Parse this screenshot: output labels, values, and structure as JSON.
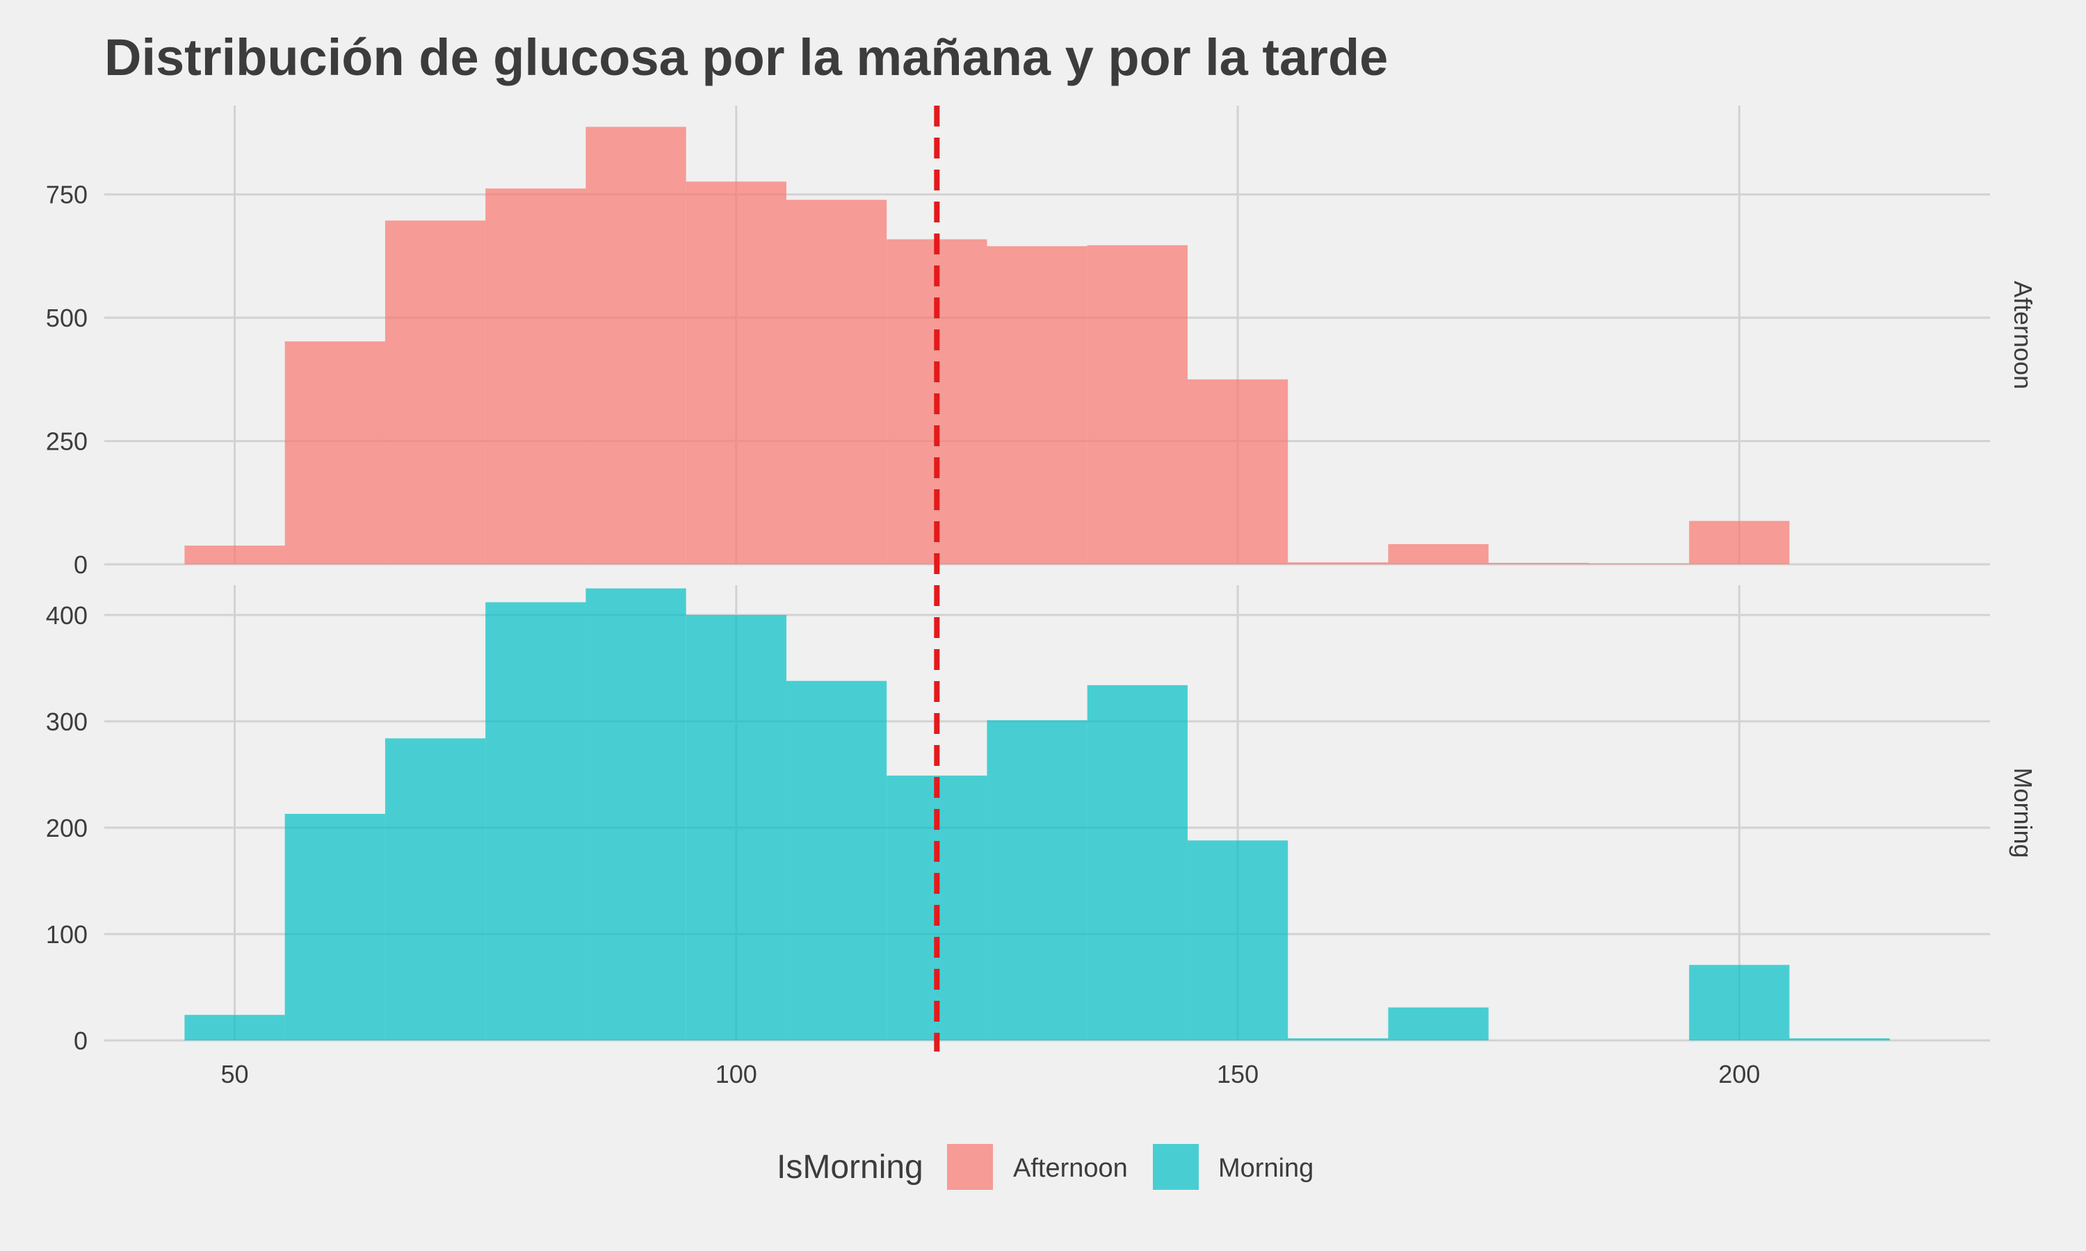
{
  "chart_data": {
    "type": "bar",
    "title": "Distribución de glucosa por la mañana y por la tarde",
    "xlabel": "",
    "ylabel": "",
    "x_ticks": [
      50,
      100,
      150,
      200
    ],
    "xlim": [
      37,
      225
    ],
    "bin_width": 10,
    "bin_edges": [
      45,
      55,
      65,
      75,
      85,
      95,
      105,
      115,
      125,
      135,
      145,
      155,
      165,
      175,
      185,
      195,
      205,
      215
    ],
    "reference_line": {
      "x": 120,
      "color": "#e31a1c",
      "style": "dashed"
    },
    "grid": true,
    "legend": {
      "title": "IsMorning",
      "position": "bottom",
      "entries": [
        "Afternoon",
        "Morning"
      ]
    },
    "facets": [
      {
        "name": "Afternoon",
        "color": "#f8766d",
        "ylim": [
          0,
          930
        ],
        "y_ticks": [
          0,
          250,
          500,
          750
        ],
        "values": [
          38,
          452,
          697,
          762,
          887,
          776,
          739,
          659,
          645,
          647,
          375,
          4,
          41,
          3,
          2,
          88,
          0
        ]
      },
      {
        "name": "Morning",
        "color": "#00bfc4",
        "ylim": [
          0,
          428
        ],
        "y_ticks": [
          0,
          100,
          200,
          300,
          400
        ],
        "values": [
          24,
          213,
          284,
          412,
          425,
          400,
          338,
          249,
          301,
          334,
          188,
          2,
          31,
          0,
          0,
          71,
          2
        ]
      }
    ]
  }
}
